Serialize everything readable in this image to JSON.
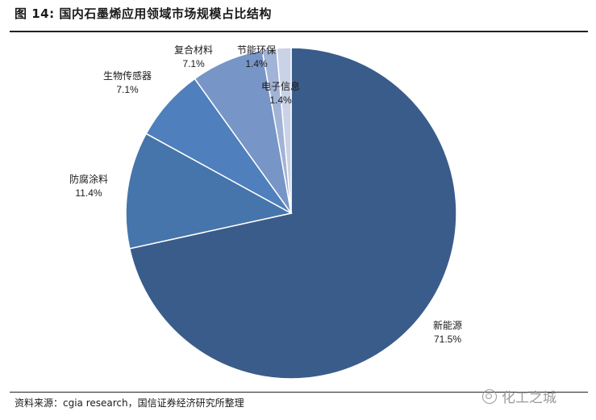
{
  "title": "图 14:  国内石墨烯应用领域市场规模占比结构",
  "source": "资料来源：cgia research，国信证券经济研究所整理",
  "watermark": "化工之城",
  "chart_data": {
    "type": "pie",
    "title": "",
    "start_angle_deg": 0,
    "direction": "clockwise",
    "slices": [
      {
        "label": "新能源",
        "value": 71.5,
        "value_label": "71.5%",
        "color": "#3a5c8a"
      },
      {
        "label": "防腐涂料",
        "value": 11.4,
        "value_label": "11.4%",
        "color": "#4675ab"
      },
      {
        "label": "生物传感器",
        "value": 7.1,
        "value_label": "7.1%",
        "color": "#4f7fbc"
      },
      {
        "label": "复合材料",
        "value": 7.1,
        "value_label": "7.1%",
        "color": "#7795c6"
      },
      {
        "label": "节能环保",
        "value": 1.4,
        "value_label": "1.4%",
        "color": "#a1b3d6"
      },
      {
        "label": "电子信息",
        "value": 1.4,
        "value_label": "1.4%",
        "color": "#c9d2e6"
      }
    ]
  }
}
